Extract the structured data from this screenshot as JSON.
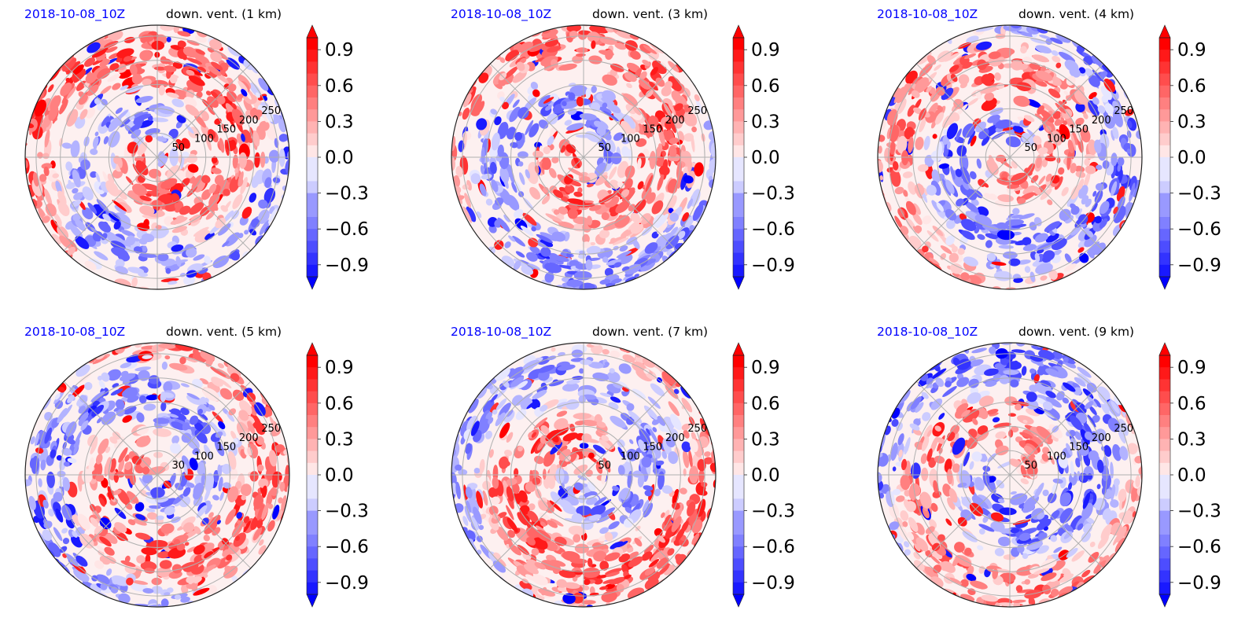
{
  "colors": {
    "title_left": "#0000ff",
    "title_right": "#000000",
    "positive": "#ff0000",
    "negative": "#0000ff",
    "grid": "#b0b0b0"
  },
  "chart_data": [
    {
      "type": "heatmap",
      "projection": "polar",
      "title_left": "2018-10-08_10Z",
      "title_right": "down. vent. (1 km)",
      "radial_ticks": [
        50,
        100,
        150,
        200,
        250
      ],
      "colorbar_ticks": [
        "0.9",
        "0.6",
        "0.3",
        "0.0",
        "−0.3",
        "−0.6",
        "−0.9"
      ],
      "colorbar_range": [
        -1.0,
        1.0
      ],
      "colorbar_extend": "both",
      "colormap": "bwr",
      "grid": true,
      "seed": 11,
      "red_bias": 0.55
    },
    {
      "type": "heatmap",
      "projection": "polar",
      "title_left": "2018-10-08_10Z",
      "title_right": "down. vent. (3 km)",
      "radial_ticks": [
        50,
        100,
        150,
        200,
        250
      ],
      "colorbar_ticks": [
        "0.9",
        "0.6",
        "0.3",
        "0.0",
        "−0.3",
        "−0.6",
        "−0.9"
      ],
      "colorbar_range": [
        -1.0,
        1.0
      ],
      "colorbar_extend": "both",
      "colormap": "bwr",
      "grid": true,
      "seed": 23,
      "red_bias": 0.45
    },
    {
      "type": "heatmap",
      "projection": "polar",
      "title_left": "2018-10-08_10Z",
      "title_right": "down. vent. (4 km)",
      "radial_ticks": [
        50,
        100,
        150,
        200,
        250
      ],
      "colorbar_ticks": [
        "0.9",
        "0.6",
        "0.3",
        "0.0",
        "−0.3",
        "−0.6",
        "−0.9"
      ],
      "colorbar_range": [
        -1.0,
        1.0
      ],
      "colorbar_extend": "both",
      "colormap": "bwr",
      "grid": true,
      "seed": 37,
      "red_bias": 0.3
    },
    {
      "type": "heatmap",
      "projection": "polar",
      "title_left": "2018-10-08_10Z",
      "title_right": "down. vent. (5 km)",
      "radial_ticks": [
        30,
        100,
        150,
        200,
        250
      ],
      "colorbar_ticks": [
        "0.9",
        "0.6",
        "0.3",
        "0.0",
        "−0.3",
        "−0.6",
        "−0.9"
      ],
      "colorbar_range": [
        -1.0,
        1.0
      ],
      "colorbar_extend": "both",
      "colormap": "bwr",
      "grid": true,
      "seed": 53,
      "red_bias": 0.4
    },
    {
      "type": "heatmap",
      "projection": "polar",
      "title_left": "2018-10-08_10Z",
      "title_right": "down. vent. (7 km)",
      "radial_ticks": [
        50,
        100,
        150,
        200,
        250
      ],
      "colorbar_ticks": [
        "0.9",
        "0.6",
        "0.3",
        "0.0",
        "−0.3",
        "−0.6",
        "−0.9"
      ],
      "colorbar_range": [
        -1.0,
        1.0
      ],
      "colorbar_extend": "both",
      "colormap": "bwr",
      "grid": true,
      "seed": 71,
      "red_bias": 0.5
    },
    {
      "type": "heatmap",
      "projection": "polar",
      "title_left": "2018-10-08_10Z",
      "title_right": "down. vent. (9 km)",
      "radial_ticks": [
        50,
        100,
        150,
        200,
        250
      ],
      "colorbar_ticks": [
        "0.9",
        "0.6",
        "0.3",
        "0.0",
        "−0.3",
        "−0.6",
        "−0.9"
      ],
      "colorbar_range": [
        -1.0,
        1.0
      ],
      "colorbar_extend": "both",
      "colormap": "bwr",
      "grid": true,
      "seed": 89,
      "red_bias": 0.2
    }
  ]
}
